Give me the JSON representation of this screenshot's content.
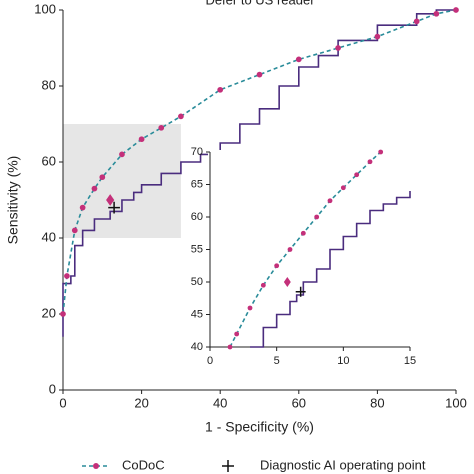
{
  "chart_data": [
    {
      "type": "line",
      "title": "Defer to US reader",
      "x_label": "1 - Specificity (%)",
      "y_label": "Sensitivity (%)",
      "xlim": [
        0,
        100
      ],
      "ylim": [
        0,
        100
      ],
      "xticks": [
        0,
        20,
        40,
        60,
        80,
        100
      ],
      "yticks": [
        0,
        20,
        40,
        60,
        80,
        100
      ],
      "highlight": {
        "x": [
          0,
          30
        ],
        "y": [
          40,
          70
        ],
        "color": "#e6e6e6"
      },
      "legend": "bottom",
      "series": [
        {
          "color": "#4a2c7e",
          "step": true,
          "x": [
            0,
            0,
            2,
            3,
            5,
            8,
            12,
            15,
            18,
            20,
            25,
            30,
            35,
            40,
            45,
            50,
            55,
            60,
            65,
            70,
            80,
            90,
            95,
            100
          ],
          "values": [
            14,
            28,
            30,
            38,
            42,
            45,
            47,
            50,
            52,
            54,
            57,
            60,
            62,
            65,
            70,
            74,
            80,
            85,
            88,
            92,
            96,
            99,
            100,
            100
          ]
        },
        {
          "name": "CoDoC",
          "color": "#2a8c9a",
          "line_style": "dashed",
          "marker": "dot",
          "marker_color": "#c4307a",
          "x": [
            0,
            1,
            3,
            5,
            8,
            10,
            15,
            20,
            25,
            30,
            40,
            50,
            60,
            70,
            80,
            90,
            95,
            100
          ],
          "values": [
            20,
            30,
            42,
            48,
            53,
            56,
            62,
            66,
            69,
            72,
            79,
            83,
            87,
            90,
            93,
            97,
            99,
            100
          ]
        },
        {
          "color": "#c4307a",
          "marker": "diamond",
          "x": [
            12
          ],
          "values": [
            50
          ]
        },
        {
          "name": "Diagnostic AI operating point",
          "color": "#111111",
          "marker": "cross",
          "x": [
            13
          ],
          "values": [
            48
          ]
        }
      ]
    },
    {
      "type": "line",
      "xlim": [
        0,
        15
      ],
      "ylim": [
        40,
        70
      ],
      "xticks": [
        0,
        5,
        10,
        15
      ],
      "yticks": [
        40,
        45,
        50,
        55,
        60,
        65,
        70
      ],
      "series": [
        {
          "color": "#4a2c7e",
          "step": true,
          "x": [
            3,
            4,
            5,
            6,
            6.5,
            7,
            8,
            9,
            10,
            11,
            12,
            13,
            14,
            15
          ],
          "values": [
            40,
            43,
            45,
            47,
            48,
            50,
            52,
            55,
            57,
            59,
            61,
            62,
            63,
            64
          ]
        },
        {
          "color": "#2a8c9a",
          "line_style": "dashed",
          "marker": "dot",
          "marker_color": "#c4307a",
          "x": [
            1.5,
            2,
            3,
            4,
            5,
            6,
            7,
            8,
            9,
            10,
            11,
            12,
            12.8
          ],
          "values": [
            40,
            42,
            46,
            49.5,
            52.5,
            55,
            57.5,
            60,
            62.5,
            64.5,
            66.5,
            68.5,
            70
          ]
        },
        {
          "color": "#c4307a",
          "marker": "diamond",
          "x": [
            5.8
          ],
          "values": [
            50
          ]
        },
        {
          "color": "#111111",
          "marker": "cross",
          "x": [
            6.8
          ],
          "values": [
            48.5
          ]
        }
      ]
    }
  ]
}
